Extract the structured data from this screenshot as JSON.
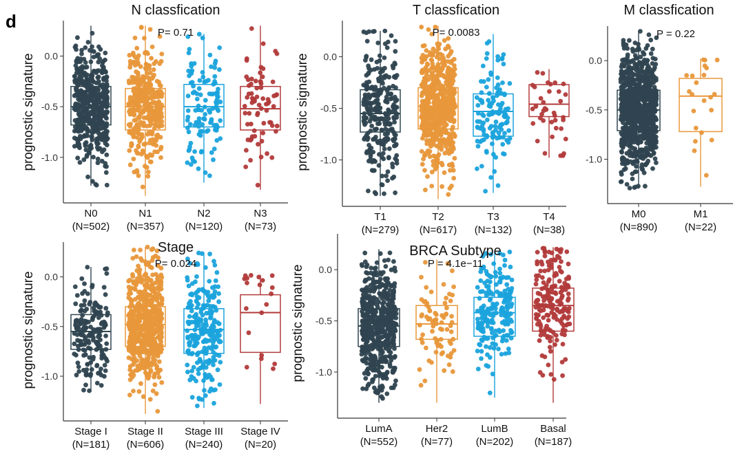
{
  "panel_label": "d",
  "ylabel": "prognostic signature",
  "palette": [
    "#2f4550",
    "#e8973a",
    "#1aa3dc",
    "#b23a3a"
  ],
  "chart_data": [
    {
      "id": "n",
      "type": "box-jitter",
      "title": "N classfication",
      "pvalue": "P= 0.71",
      "ylim": [
        -1.45,
        0.35
      ],
      "yticks": [
        0.0,
        -0.5,
        -1.0
      ],
      "yticklabels": [
        "0.0",
        "-0.5",
        "-1.0"
      ],
      "categories": [
        "N0",
        "N1",
        "N2",
        "N3"
      ],
      "counts": [
        "(N=502)",
        "(N=357)",
        "(N=120)",
        "(N=73)"
      ],
      "n": [
        502,
        357,
        120,
        73
      ],
      "boxes": [
        {
          "whisker_low": -1.28,
          "q1": -0.68,
          "median": -0.5,
          "q3": -0.3,
          "whisker_high": 0.3
        },
        {
          "whisker_low": -1.38,
          "q1": -0.73,
          "median": -0.5,
          "q3": -0.32,
          "whisker_high": 0.3
        },
        {
          "whisker_low": -1.25,
          "q1": -0.7,
          "median": -0.5,
          "q3": -0.28,
          "whisker_high": 0.22
        },
        {
          "whisker_low": -1.32,
          "q1": -0.73,
          "median": -0.52,
          "q3": -0.3,
          "whisker_high": 0.3
        }
      ]
    },
    {
      "id": "t",
      "type": "box-jitter",
      "title": "T classfication",
      "pvalue": "P= 0.0083",
      "ylim": [
        -1.45,
        0.35
      ],
      "yticks": [
        0.0,
        -0.5,
        -1.0
      ],
      "yticklabels": [
        "0.0",
        "-0.5",
        "-1.0"
      ],
      "categories": [
        "T1",
        "T2",
        "T3",
        "T4"
      ],
      "counts": [
        "(N=279)",
        "(N=617)",
        "(N=132)",
        "(N=38)"
      ],
      "n": [
        279,
        617,
        132,
        38
      ],
      "boxes": [
        {
          "whisker_low": -1.35,
          "q1": -0.73,
          "median": -0.55,
          "q3": -0.32,
          "whisker_high": 0.25
        },
        {
          "whisker_low": -1.38,
          "q1": -0.7,
          "median": -0.48,
          "q3": -0.3,
          "whisker_high": 0.3
        },
        {
          "whisker_low": -1.32,
          "q1": -0.77,
          "median": -0.53,
          "q3": -0.36,
          "whisker_high": 0.22
        },
        {
          "whisker_low": -0.98,
          "q1": -0.58,
          "median": -0.46,
          "q3": -0.27,
          "whisker_high": -0.12
        }
      ]
    },
    {
      "id": "m",
      "type": "box-jitter",
      "title": "M classfication",
      "pvalue": "P = 0.22",
      "ylim": [
        -1.45,
        0.35
      ],
      "yticks": [
        0.0,
        -0.5,
        -1.0
      ],
      "yticklabels": [
        "0.0",
        "-0.5",
        "-1.0"
      ],
      "categories": [
        "M0",
        "M1"
      ],
      "counts": [
        "(N=890)",
        "(N=22)"
      ],
      "n": [
        890,
        22
      ],
      "boxes": [
        {
          "whisker_low": -1.3,
          "q1": -0.71,
          "median": -0.5,
          "q3": -0.3,
          "whisker_high": 0.3
        },
        {
          "whisker_low": -1.28,
          "q1": -0.72,
          "median": -0.36,
          "q3": -0.18,
          "whisker_high": 0.02
        }
      ]
    },
    {
      "id": "stage",
      "type": "box-jitter",
      "title": "Stage",
      "pvalue": "P= 0.024",
      "ylim": [
        -1.45,
        0.35
      ],
      "yticks": [
        0.0,
        -0.5,
        -1.0
      ],
      "yticklabels": [
        "0.0",
        "-0.5",
        "-1.0"
      ],
      "categories": [
        "Stage I",
        "Stage II",
        "Stage III",
        "Stage IV"
      ],
      "counts": [
        "(N=181)",
        "(N=606)",
        "(N=240)",
        "(N=20)"
      ],
      "n": [
        181,
        606,
        240,
        20
      ],
      "boxes": [
        {
          "whisker_low": -1.15,
          "q1": -0.73,
          "median": -0.55,
          "q3": -0.38,
          "whisker_high": 0.1
        },
        {
          "whisker_low": -1.38,
          "q1": -0.7,
          "median": -0.48,
          "q3": -0.3,
          "whisker_high": 0.3
        },
        {
          "whisker_low": -1.32,
          "q1": -0.77,
          "median": -0.53,
          "q3": -0.32,
          "whisker_high": 0.25
        },
        {
          "whisker_low": -1.28,
          "q1": -0.76,
          "median": -0.36,
          "q3": -0.18,
          "whisker_high": 0.02
        }
      ]
    },
    {
      "id": "subtype",
      "type": "box-jitter",
      "title": "BRCA Subtype",
      "pvalue": "P = 4.1e−11",
      "ylim": [
        -1.45,
        0.35
      ],
      "yticks": [
        0.0,
        -0.5,
        -1.0
      ],
      "yticklabels": [
        "0.0",
        "-0.5",
        "-1.0"
      ],
      "categories": [
        "LumA",
        "Her2",
        "LumB",
        "Basal"
      ],
      "counts": [
        "(N=552)",
        "(N=77)",
        "(N=202)",
        "(N=187)"
      ],
      "n": [
        552,
        77,
        202,
        187
      ],
      "boxes": [
        {
          "whisker_low": -1.3,
          "q1": -0.75,
          "median": -0.55,
          "q3": -0.38,
          "whisker_high": 0.2
        },
        {
          "whisker_low": -1.3,
          "q1": -0.68,
          "median": -0.53,
          "q3": -0.35,
          "whisker_high": 0.1
        },
        {
          "whisker_low": -1.25,
          "q1": -0.65,
          "median": -0.42,
          "q3": -0.27,
          "whisker_high": 0.18
        },
        {
          "whisker_low": -1.3,
          "q1": -0.6,
          "median": -0.35,
          "q3": -0.18,
          "whisker_high": 0.22
        }
      ]
    }
  ]
}
